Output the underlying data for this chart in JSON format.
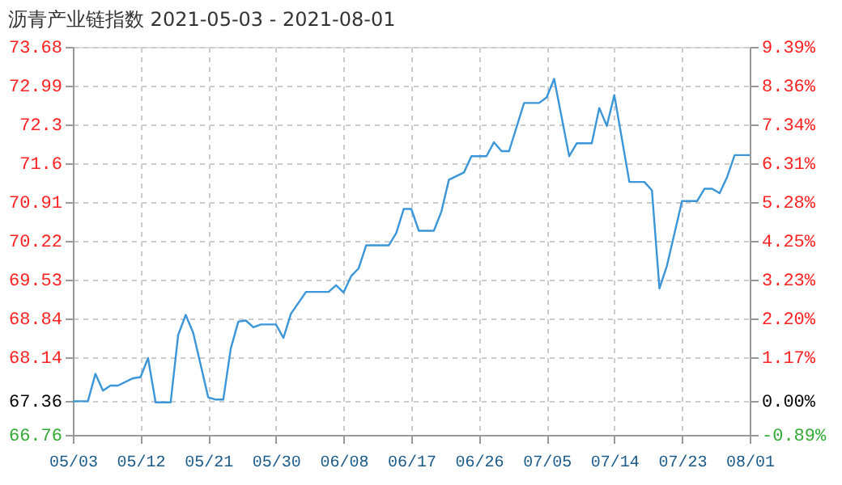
{
  "chart_data": {
    "type": "line",
    "title": "沥青产业链指数 2021-05-03 - 2021-08-01",
    "x": [
      "2021-05-03",
      "2021-05-05",
      "2021-05-06",
      "2021-05-07",
      "2021-05-08",
      "2021-05-09",
      "2021-05-11",
      "2021-05-12",
      "2021-05-13",
      "2021-05-14",
      "2021-05-16",
      "2021-05-17",
      "2021-05-18",
      "2021-05-19",
      "2021-05-21",
      "2021-05-22",
      "2021-05-23",
      "2021-05-24",
      "2021-05-25",
      "2021-05-26",
      "2021-05-27",
      "2021-05-28",
      "2021-05-30",
      "2021-05-31",
      "2021-06-01",
      "2021-06-03",
      "2021-06-06",
      "2021-06-07",
      "2021-06-08",
      "2021-06-09",
      "2021-06-10",
      "2021-06-11",
      "2021-06-14",
      "2021-06-15",
      "2021-06-16",
      "2021-06-17",
      "2021-06-18",
      "2021-06-20",
      "2021-06-21",
      "2021-06-22",
      "2021-06-24",
      "2021-06-25",
      "2021-06-27",
      "2021-06-28",
      "2021-06-29",
      "2021-06-30",
      "2021-07-02",
      "2021-07-04",
      "2021-07-05",
      "2021-07-06",
      "2021-07-08",
      "2021-07-09",
      "2021-07-11",
      "2021-07-12",
      "2021-07-13",
      "2021-07-14",
      "2021-07-16",
      "2021-07-18",
      "2021-07-19",
      "2021-07-20",
      "2021-07-21",
      "2021-07-23",
      "2021-07-25",
      "2021-07-26",
      "2021-07-27",
      "2021-07-28",
      "2021-07-29",
      "2021-07-30",
      "2021-08-01"
    ],
    "series": [
      {
        "color": "#3a96d8",
        "values": [
          67.36,
          67.36,
          67.85,
          67.55,
          67.64,
          67.64,
          67.77,
          67.79,
          68.13,
          67.34,
          67.34,
          68.54,
          68.9,
          68.58,
          67.43,
          67.39,
          67.39,
          68.3,
          68.78,
          68.8,
          68.68,
          68.73,
          68.73,
          68.49,
          68.92,
          69.31,
          69.31,
          69.43,
          69.3,
          69.59,
          69.73,
          70.14,
          70.14,
          70.36,
          70.79,
          70.79,
          70.4,
          70.4,
          70.74,
          71.31,
          71.44,
          71.73,
          71.73,
          71.98,
          71.82,
          71.82,
          72.68,
          72.68,
          72.78,
          73.11,
          71.73,
          71.96,
          71.96,
          72.59,
          72.27,
          72.82,
          71.27,
          71.27,
          71.12,
          69.37,
          69.78,
          70.93,
          70.93,
          71.15,
          71.15,
          71.07,
          71.36,
          71.75,
          71.75
        ]
      }
    ],
    "xlim": [
      "2021-05-03",
      "2021-08-01"
    ],
    "xticks": [
      {
        "value": "2021-05-03",
        "label": "05/03"
      },
      {
        "value": "2021-05-12",
        "label": "05/12"
      },
      {
        "value": "2021-05-21",
        "label": "05/21"
      },
      {
        "value": "2021-05-30",
        "label": "05/30"
      },
      {
        "value": "2021-06-08",
        "label": "06/08"
      },
      {
        "value": "2021-06-17",
        "label": "06/17"
      },
      {
        "value": "2021-06-26",
        "label": "06/26"
      },
      {
        "value": "2021-07-05",
        "label": "07/05"
      },
      {
        "value": "2021-07-14",
        "label": "07/14"
      },
      {
        "value": "2021-07-23",
        "label": "07/23"
      },
      {
        "value": "2021-08-01",
        "label": "08/01"
      }
    ],
    "ylim": [
      66.76,
      73.68
    ],
    "yticks": [
      66.76,
      67.36,
      68.14,
      68.84,
      69.53,
      70.22,
      70.91,
      71.6,
      72.3,
      72.99,
      73.68
    ],
    "y2lim": [
      -0.89,
      9.39
    ],
    "y2ticks": [
      {
        "value": -0.89,
        "label": "-0.89%"
      },
      {
        "value": 0,
        "label": "0.00%"
      },
      {
        "value": 1.17,
        "label": "1.17%"
      },
      {
        "value": 2.2,
        "label": "2.20%"
      },
      {
        "value": 3.23,
        "label": "3.23%"
      },
      {
        "value": 4.25,
        "label": "4.25%"
      },
      {
        "value": 5.28,
        "label": "5.28%"
      },
      {
        "value": 6.31,
        "label": "6.31%"
      },
      {
        "value": 7.34,
        "label": "7.34%"
      },
      {
        "value": 8.36,
        "label": "8.36%"
      },
      {
        "value": 9.39,
        "label": "9.39%"
      }
    ],
    "grid": true,
    "marker": "none",
    "line_style": "solid"
  }
}
